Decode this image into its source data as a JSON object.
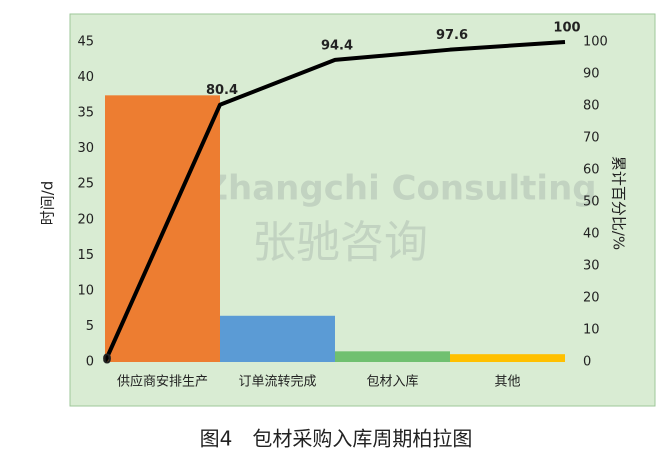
{
  "chart_data": {
    "type": "pareto",
    "caption": "图4　包材采购入库周期柏拉图",
    "watermark": [
      "Zhangchi Consulting",
      "张驰咨询"
    ],
    "y_label": "时间/d",
    "y2_label": "累计百分比/%",
    "categories": [
      "供应商安排生产",
      "订单流转完成",
      "包材入库",
      "其他"
    ],
    "series": [
      {
        "values": [
          37.5,
          6.5,
          1.5,
          1.1
        ],
        "colors": [
          "#ed7d31",
          "#5b9bd5",
          "#70c070",
          "#ffc000"
        ]
      }
    ],
    "cumulative": {
      "values": [
        0,
        80.4,
        94.4,
        97.6,
        100
      ],
      "axis": "y2",
      "color": "#000000"
    },
    "ylim": [
      0,
      45
    ],
    "yticks": [
      0,
      5,
      10,
      15,
      20,
      25,
      30,
      35,
      40,
      45
    ],
    "y2lim": [
      0,
      100
    ],
    "y2ticks": [
      0,
      10,
      20,
      30,
      40,
      50,
      60,
      70,
      80,
      90,
      100
    ]
  }
}
